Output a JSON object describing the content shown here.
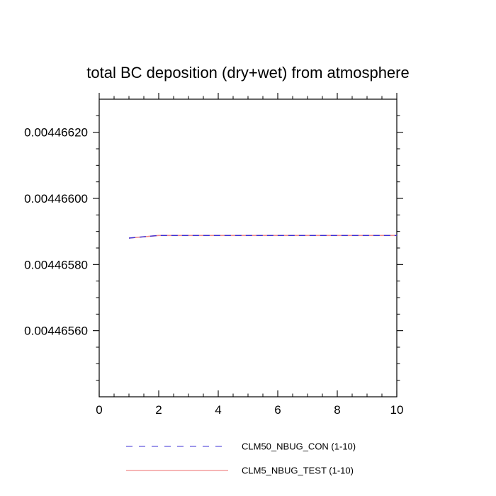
{
  "chart_data": {
    "type": "line",
    "title": "total BC deposition (dry+wet) from atmosphere",
    "xlabel": "",
    "ylabel": "",
    "xlim": [
      0,
      10
    ],
    "ylim": [
      0.0044654,
      0.0044663
    ],
    "x_ticks": [
      0,
      2,
      4,
      6,
      8,
      10
    ],
    "x_tick_labels": [
      "0",
      "2",
      "4",
      "6",
      "8",
      "10"
    ],
    "y_ticks": [
      0.0044656,
      0.0044658,
      0.004466,
      0.0044662
    ],
    "y_tick_labels": [
      "0.00446560",
      "0.00446580",
      "0.00446600",
      "0.00446620"
    ],
    "grid": false,
    "legend_position": "bottom",
    "series": [
      {
        "name": "CLM50_NBUG_CON (1-10)",
        "color": "#3b2fd6",
        "dash": "dashed",
        "x": [
          1,
          2,
          3,
          4,
          5,
          6,
          7,
          8,
          9,
          10
        ],
        "y": [
          0.00446588,
          0.004465888,
          0.004465888,
          0.004465888,
          0.004465888,
          0.004465888,
          0.004465888,
          0.004465888,
          0.004465888,
          0.004465888
        ]
      },
      {
        "name": "CLM5_NBUG_TEST (1-10)",
        "color": "#f08a8a",
        "dash": "solid",
        "x": [
          1,
          2,
          3,
          4,
          5,
          6,
          7,
          8,
          9,
          10
        ],
        "y": [
          0.00446588,
          0.004465888,
          0.004465888,
          0.004465888,
          0.004465888,
          0.004465888,
          0.004465888,
          0.004465888,
          0.004465888,
          0.004465888
        ]
      }
    ]
  }
}
